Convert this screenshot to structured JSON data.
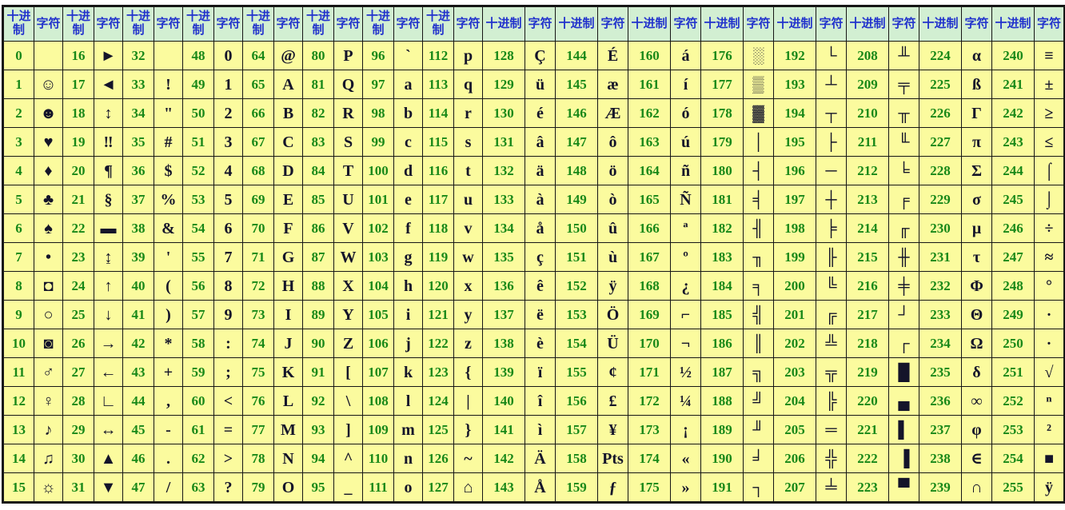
{
  "header": {
    "dec_label": "十进制",
    "char_label": "字符"
  },
  "colors": {
    "cell_bg": "#fbfb9e",
    "header_bg": "#d2efd2",
    "header_text": "#2233cc",
    "decimal_text": "#188818",
    "char_text": "#14142a",
    "border": "#161616"
  },
  "columns": [
    {
      "pairs": [
        [
          "0",
          ""
        ],
        [
          "1",
          "☺"
        ],
        [
          "2",
          "☻"
        ],
        [
          "3",
          "♥"
        ],
        [
          "4",
          "♦"
        ],
        [
          "5",
          "♣"
        ],
        [
          "6",
          "♠"
        ],
        [
          "7",
          "•"
        ],
        [
          "8",
          "◘"
        ],
        [
          "9",
          "○"
        ],
        [
          "10",
          "◙"
        ],
        [
          "11",
          "♂"
        ],
        [
          "12",
          "♀"
        ],
        [
          "13",
          "♪"
        ],
        [
          "14",
          "♫"
        ],
        [
          "15",
          "☼"
        ]
      ]
    },
    {
      "pairs": [
        [
          "16",
          "►"
        ],
        [
          "17",
          "◄"
        ],
        [
          "18",
          "↕"
        ],
        [
          "19",
          "‼"
        ],
        [
          "20",
          "¶"
        ],
        [
          "21",
          "§"
        ],
        [
          "22",
          "▬"
        ],
        [
          "23",
          "↨"
        ],
        [
          "24",
          "↑"
        ],
        [
          "25",
          "↓"
        ],
        [
          "26",
          "→"
        ],
        [
          "27",
          "←"
        ],
        [
          "28",
          "∟"
        ],
        [
          "29",
          "↔"
        ],
        [
          "30",
          "▲"
        ],
        [
          "31",
          "▼"
        ]
      ]
    },
    {
      "pairs": [
        [
          "32",
          ""
        ],
        [
          "33",
          "!"
        ],
        [
          "34",
          "\""
        ],
        [
          "35",
          "#"
        ],
        [
          "36",
          "$"
        ],
        [
          "37",
          "%"
        ],
        [
          "38",
          "&"
        ],
        [
          "39",
          "'"
        ],
        [
          "40",
          "("
        ],
        [
          "41",
          ")"
        ],
        [
          "42",
          "*"
        ],
        [
          "43",
          "+"
        ],
        [
          "44",
          ","
        ],
        [
          "45",
          "-"
        ],
        [
          "46",
          "."
        ],
        [
          "47",
          "/"
        ]
      ]
    },
    {
      "pairs": [
        [
          "48",
          "0"
        ],
        [
          "49",
          "1"
        ],
        [
          "50",
          "2"
        ],
        [
          "51",
          "3"
        ],
        [
          "52",
          "4"
        ],
        [
          "53",
          "5"
        ],
        [
          "54",
          "6"
        ],
        [
          "55",
          "7"
        ],
        [
          "56",
          "8"
        ],
        [
          "57",
          "9"
        ],
        [
          "58",
          ":"
        ],
        [
          "59",
          ";"
        ],
        [
          "60",
          "<"
        ],
        [
          "61",
          "="
        ],
        [
          "62",
          ">"
        ],
        [
          "63",
          "?"
        ]
      ]
    },
    {
      "pairs": [
        [
          "64",
          "@"
        ],
        [
          "65",
          "A"
        ],
        [
          "66",
          "B"
        ],
        [
          "67",
          "C"
        ],
        [
          "68",
          "D"
        ],
        [
          "69",
          "E"
        ],
        [
          "70",
          "F"
        ],
        [
          "71",
          "G"
        ],
        [
          "72",
          "H"
        ],
        [
          "73",
          "I"
        ],
        [
          "74",
          "J"
        ],
        [
          "75",
          "K"
        ],
        [
          "76",
          "L"
        ],
        [
          "77",
          "M"
        ],
        [
          "78",
          "N"
        ],
        [
          "79",
          "O"
        ]
      ]
    },
    {
      "pairs": [
        [
          "80",
          "P"
        ],
        [
          "81",
          "Q"
        ],
        [
          "82",
          "R"
        ],
        [
          "83",
          "S"
        ],
        [
          "84",
          "T"
        ],
        [
          "85",
          "U"
        ],
        [
          "86",
          "V"
        ],
        [
          "87",
          "W"
        ],
        [
          "88",
          "X"
        ],
        [
          "89",
          "Y"
        ],
        [
          "90",
          "Z"
        ],
        [
          "91",
          "["
        ],
        [
          "92",
          "\\"
        ],
        [
          "93",
          "]"
        ],
        [
          "94",
          "^"
        ],
        [
          "95",
          "_"
        ]
      ]
    },
    {
      "pairs": [
        [
          "96",
          "`"
        ],
        [
          "97",
          "a"
        ],
        [
          "98",
          "b"
        ],
        [
          "99",
          "c"
        ],
        [
          "100",
          "d"
        ],
        [
          "101",
          "e"
        ],
        [
          "102",
          "f"
        ],
        [
          "103",
          "g"
        ],
        [
          "104",
          "h"
        ],
        [
          "105",
          "i"
        ],
        [
          "106",
          "j"
        ],
        [
          "107",
          "k"
        ],
        [
          "108",
          "l"
        ],
        [
          "109",
          "m"
        ],
        [
          "110",
          "n"
        ],
        [
          "111",
          "o"
        ]
      ]
    },
    {
      "pairs": [
        [
          "112",
          "p"
        ],
        [
          "113",
          "q"
        ],
        [
          "114",
          "r"
        ],
        [
          "115",
          "s"
        ],
        [
          "116",
          "t"
        ],
        [
          "117",
          "u"
        ],
        [
          "118",
          "v"
        ],
        [
          "119",
          "w"
        ],
        [
          "120",
          "x"
        ],
        [
          "121",
          "y"
        ],
        [
          "122",
          "z"
        ],
        [
          "123",
          "{"
        ],
        [
          "124",
          "|"
        ],
        [
          "125",
          "}"
        ],
        [
          "126",
          "~"
        ],
        [
          "127",
          "⌂"
        ]
      ]
    },
    {
      "pairs": [
        [
          "128",
          "Ç"
        ],
        [
          "129",
          "ü"
        ],
        [
          "130",
          "é"
        ],
        [
          "131",
          "â"
        ],
        [
          "132",
          "ä"
        ],
        [
          "133",
          "à"
        ],
        [
          "134",
          "å"
        ],
        [
          "135",
          "ç"
        ],
        [
          "136",
          "ê"
        ],
        [
          "137",
          "ë"
        ],
        [
          "138",
          "è"
        ],
        [
          "139",
          "ï"
        ],
        [
          "140",
          "î"
        ],
        [
          "141",
          "ì"
        ],
        [
          "142",
          "Ä"
        ],
        [
          "143",
          "Å"
        ]
      ]
    },
    {
      "pairs": [
        [
          "144",
          "É"
        ],
        [
          "145",
          "æ"
        ],
        [
          "146",
          "Æ"
        ],
        [
          "147",
          "ô"
        ],
        [
          "148",
          "ö"
        ],
        [
          "149",
          "ò"
        ],
        [
          "150",
          "û"
        ],
        [
          "151",
          "ù"
        ],
        [
          "152",
          "ÿ"
        ],
        [
          "153",
          "Ö"
        ],
        [
          "154",
          "Ü"
        ],
        [
          "155",
          "¢"
        ],
        [
          "156",
          "£"
        ],
        [
          "157",
          "¥"
        ],
        [
          "158",
          "Pts"
        ],
        [
          "159",
          "ƒ"
        ]
      ]
    },
    {
      "pairs": [
        [
          "160",
          "á"
        ],
        [
          "161",
          "í"
        ],
        [
          "162",
          "ó"
        ],
        [
          "163",
          "ú"
        ],
        [
          "164",
          "ñ"
        ],
        [
          "165",
          "Ñ"
        ],
        [
          "166",
          "ª"
        ],
        [
          "167",
          "º"
        ],
        [
          "168",
          "¿"
        ],
        [
          "169",
          "⌐"
        ],
        [
          "170",
          "¬"
        ],
        [
          "171",
          "½"
        ],
        [
          "172",
          "¼"
        ],
        [
          "173",
          "¡"
        ],
        [
          "174",
          "«"
        ],
        [
          "175",
          "»"
        ]
      ]
    },
    {
      "pairs": [
        [
          "176",
          "░"
        ],
        [
          "177",
          "▒"
        ],
        [
          "178",
          "▓"
        ],
        [
          "179",
          "│"
        ],
        [
          "180",
          "┤"
        ],
        [
          "181",
          "╡"
        ],
        [
          "182",
          "╢"
        ],
        [
          "183",
          "╖"
        ],
        [
          "184",
          "╕"
        ],
        [
          "185",
          "╣"
        ],
        [
          "186",
          "║"
        ],
        [
          "187",
          "╗"
        ],
        [
          "188",
          "╝"
        ],
        [
          "189",
          "╜"
        ],
        [
          "190",
          "╛"
        ],
        [
          "191",
          "┐"
        ]
      ]
    },
    {
      "pairs": [
        [
          "192",
          "└"
        ],
        [
          "193",
          "┴"
        ],
        [
          "194",
          "┬"
        ],
        [
          "195",
          "├"
        ],
        [
          "196",
          "─"
        ],
        [
          "197",
          "┼"
        ],
        [
          "198",
          "╞"
        ],
        [
          "199",
          "╟"
        ],
        [
          "200",
          "╚"
        ],
        [
          "201",
          "╔"
        ],
        [
          "202",
          "╩"
        ],
        [
          "203",
          "╦"
        ],
        [
          "204",
          "╠"
        ],
        [
          "205",
          "═"
        ],
        [
          "206",
          "╬"
        ],
        [
          "207",
          "╧"
        ]
      ]
    },
    {
      "pairs": [
        [
          "208",
          "╨"
        ],
        [
          "209",
          "╤"
        ],
        [
          "210",
          "╥"
        ],
        [
          "211",
          "╙"
        ],
        [
          "212",
          "╘"
        ],
        [
          "213",
          "╒"
        ],
        [
          "214",
          "╓"
        ],
        [
          "215",
          "╫"
        ],
        [
          "216",
          "╪"
        ],
        [
          "217",
          "┘"
        ],
        [
          "218",
          "┌"
        ],
        [
          "219",
          "█"
        ],
        [
          "220",
          "▄"
        ],
        [
          "221",
          "▌"
        ],
        [
          "222",
          "▐"
        ],
        [
          "223",
          "▀"
        ]
      ]
    },
    {
      "pairs": [
        [
          "224",
          "α"
        ],
        [
          "225",
          "ß"
        ],
        [
          "226",
          "Γ"
        ],
        [
          "227",
          "π"
        ],
        [
          "228",
          "Σ"
        ],
        [
          "229",
          "σ"
        ],
        [
          "230",
          "μ"
        ],
        [
          "231",
          "τ"
        ],
        [
          "232",
          "Φ"
        ],
        [
          "233",
          "Θ"
        ],
        [
          "234",
          "Ω"
        ],
        [
          "235",
          "δ"
        ],
        [
          "236",
          "∞"
        ],
        [
          "237",
          "φ"
        ],
        [
          "238",
          "∈"
        ],
        [
          "239",
          "∩"
        ]
      ]
    },
    {
      "pairs": [
        [
          "240",
          "≡"
        ],
        [
          "241",
          "±"
        ],
        [
          "242",
          "≥"
        ],
        [
          "243",
          "≤"
        ],
        [
          "244",
          "⌠"
        ],
        [
          "245",
          "⌡"
        ],
        [
          "246",
          "÷"
        ],
        [
          "247",
          "≈"
        ],
        [
          "248",
          "°"
        ],
        [
          "249",
          "∙"
        ],
        [
          "250",
          "·"
        ],
        [
          "251",
          "√"
        ],
        [
          "252",
          "ⁿ"
        ],
        [
          "253",
          "²"
        ],
        [
          "254",
          "■"
        ],
        [
          "255",
          "ÿ"
        ]
      ]
    }
  ]
}
